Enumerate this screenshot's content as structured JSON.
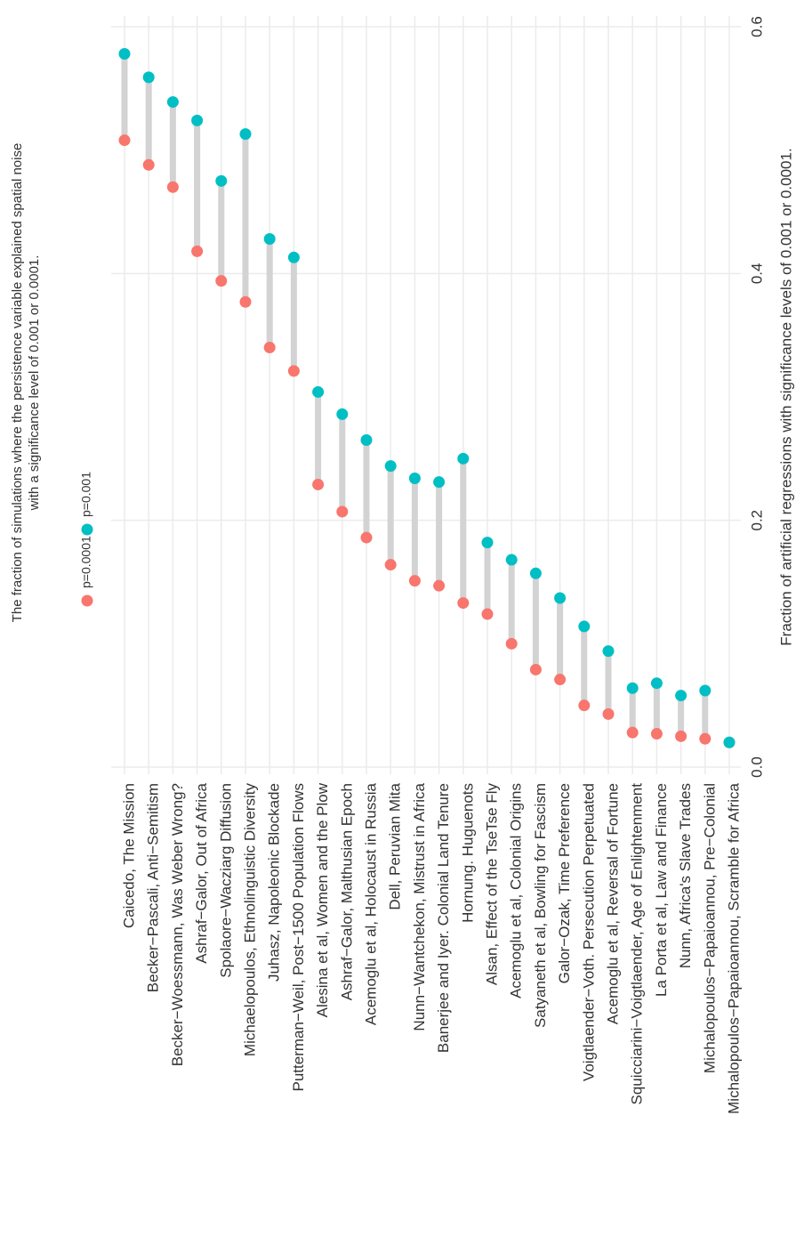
{
  "chart_data": {
    "type": "dumbbell",
    "title": [
      "The fraction of simulations where the persistence variable explained spatial noise",
      "with a significance level of 0.001 or 0.0001."
    ],
    "y_label": "Fraction of artificial regressions with significance levels of 0.001 or 0.0001.",
    "categories": [
      "Caicedo, The Mission",
      "Becker−Pascali, Anti−Semitism",
      "Becker−Woessmann, Was Weber Wrong?",
      "Ashraf−Galor, Out of Africa",
      "Spolaore−Wacziarg Diffusion",
      "Michaelopoulos, Ethnolinguistic Diversity",
      "Juhasz, Napoleonic Blockade",
      "Putterman−Weil, Post−1500 Population Flows",
      "Alesina et al, Women and the Plow",
      "Ashraf−Galor, Malthusian Epoch",
      "Acemoglu et al, Holocaust in Russia",
      "Dell, Peruvian Mita",
      "Nunn−Wantchekon, Mistrust in Africa",
      "Banerjee and Iyer. Colonial Land Tenure",
      "Hornung. Huguenots",
      "Alsan, Effect of the TseTse Fly",
      "Acemoglu et al, Colonial Origins",
      "Satyaneth et al, Bowling for Fascism",
      "Galor−Ozak, Time Preference",
      "Voigtlaender−Voth. Persecution Perpetuated",
      "Acemoglu et al, Reversal of Fortune",
      "Squicciarini−Voigtlaender, Age of Enlightenment",
      "La Porta et al, Law and Finance",
      "Nunn, Africa's Slave Trades",
      "Michalopoulos−Papaioannou, Pre−Colonial",
      "Michalopoulos−Papaioannou, Scramble for Africa"
    ],
    "series": [
      {
        "name": "p=0.0001",
        "color": "#F8766D",
        "values": [
          0.508,
          0.488,
          0.47,
          0.418,
          0.394,
          0.377,
          0.34,
          0.321,
          0.229,
          0.207,
          0.186,
          0.164,
          0.151,
          0.147,
          0.133,
          0.124,
          0.1,
          0.079,
          0.071,
          0.05,
          0.043,
          0.028,
          0.027,
          0.025,
          0.023,
          0.02
        ]
      },
      {
        "name": "p=0.001",
        "color": "#00BFC4",
        "values": [
          0.578,
          0.559,
          0.539,
          0.524,
          0.475,
          0.513,
          0.428,
          0.413,
          0.304,
          0.286,
          0.265,
          0.244,
          0.234,
          0.231,
          0.25,
          0.182,
          0.168,
          0.157,
          0.137,
          0.114,
          0.094,
          0.064,
          0.068,
          0.058,
          0.062,
          0.02
        ]
      }
    ],
    "segment_color": "#d3d3d3",
    "ylim": [
      0,
      0.6
    ],
    "yticks": [
      {
        "value": 0,
        "label": "0.0"
      },
      0.2,
      0.4,
      0.6
    ],
    "grid": true
  }
}
